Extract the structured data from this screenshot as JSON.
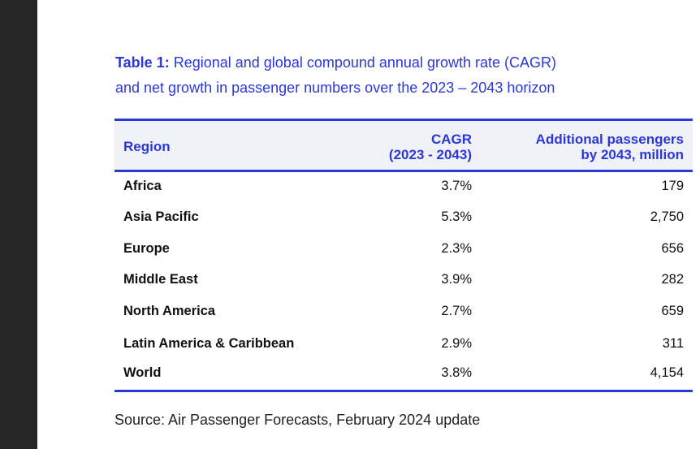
{
  "caption": {
    "label": "Table 1:",
    "line1": "Regional and global compound annual growth rate (CAGR)",
    "line2": "and net growth in passenger numbers over the 2023 – 2043 horizon"
  },
  "table": {
    "headers": {
      "region": "Region",
      "cagr_line1": "CAGR",
      "cagr_line2": "(2023 - 2043)",
      "additional_line1": "Additional passengers",
      "additional_line2": "by 2043, million"
    },
    "rows": [
      {
        "region": "Africa",
        "cagr": "3.7%",
        "additional": "179"
      },
      {
        "region": "Asia Pacific",
        "cagr": "5.3%",
        "additional": "2,750"
      },
      {
        "region": "Europe",
        "cagr": "2.3%",
        "additional": "656"
      },
      {
        "region": "Middle East",
        "cagr": "3.9%",
        "additional": "282"
      },
      {
        "region": "North America",
        "cagr": "2.7%",
        "additional": "659"
      },
      {
        "region": "Latin America & Caribbean",
        "cagr": "2.9%",
        "additional": "311"
      },
      {
        "region": "World",
        "cagr": "3.8%",
        "additional": "4,154"
      }
    ]
  },
  "source": "Source: Air Passenger Forecasts, February 2024 update",
  "colors": {
    "accent": "#2b38d9",
    "header_bg": "#f1f2f8",
    "sidebar": "#262626"
  }
}
